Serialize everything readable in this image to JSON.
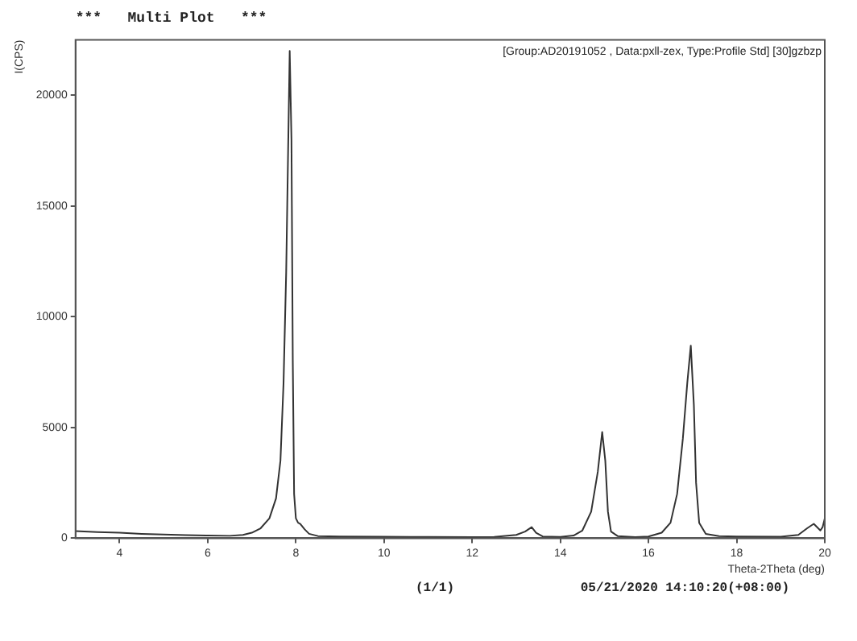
{
  "chart_data": {
    "type": "line",
    "title": "***   Multi Plot   ***",
    "xlabel": "Theta-2Theta (deg)",
    "ylabel": "I(CPS)",
    "annotations": [
      "[Group:AD20191052 , Data:pxll-zex, Type:Profile Std] [30]gzbzp",
      "(1/1)",
      "05/21/2020 14:10:20(+08:00)"
    ],
    "x": [
      3,
      3.5,
      4,
      4.5,
      5,
      5.5,
      6,
      6.5,
      6.8,
      7.0,
      7.2,
      7.4,
      7.55,
      7.65,
      7.72,
      7.78,
      7.82,
      7.86,
      7.9,
      7.93,
      7.96,
      8.0,
      8.05,
      8.1,
      8.2,
      8.3,
      8.5,
      9,
      10,
      11,
      12,
      12.5,
      13.0,
      13.2,
      13.35,
      13.45,
      13.6,
      14,
      14.3,
      14.5,
      14.7,
      14.85,
      14.95,
      15.02,
      15.08,
      15.15,
      15.3,
      15.7,
      16,
      16.3,
      16.5,
      16.65,
      16.78,
      16.88,
      16.96,
      17.03,
      17.08,
      17.15,
      17.3,
      17.6,
      18,
      19,
      19.4,
      19.6,
      19.75,
      19.85,
      19.9,
      19.95,
      20
    ],
    "series": [
      {
        "color": "#333333",
        "values": [
          320,
          280,
          250,
          200,
          170,
          140,
          120,
          110,
          150,
          250,
          450,
          900,
          1800,
          3500,
          7000,
          12000,
          17000,
          22000,
          18000,
          8000,
          2000,
          900,
          700,
          650,
          400,
          200,
          100,
          80,
          70,
          60,
          50,
          60,
          150,
          300,
          500,
          250,
          80,
          60,
          120,
          350,
          1200,
          3000,
          4800,
          3500,
          1200,
          300,
          100,
          50,
          80,
          250,
          700,
          2000,
          4500,
          7000,
          8700,
          6000,
          2500,
          700,
          200,
          100,
          80,
          70,
          150,
          450,
          650,
          450,
          350,
          500,
          900
        ]
      }
    ],
    "xlim": [
      3,
      20
    ],
    "xticks": [
      4,
      6,
      8,
      10,
      12,
      14,
      16,
      18,
      20
    ],
    "ylim": [
      0,
      22500
    ],
    "yticks": [
      0,
      5000,
      10000,
      15000,
      20000
    ],
    "grid": false,
    "legend": false,
    "marker": "none",
    "line_style": "solid"
  }
}
